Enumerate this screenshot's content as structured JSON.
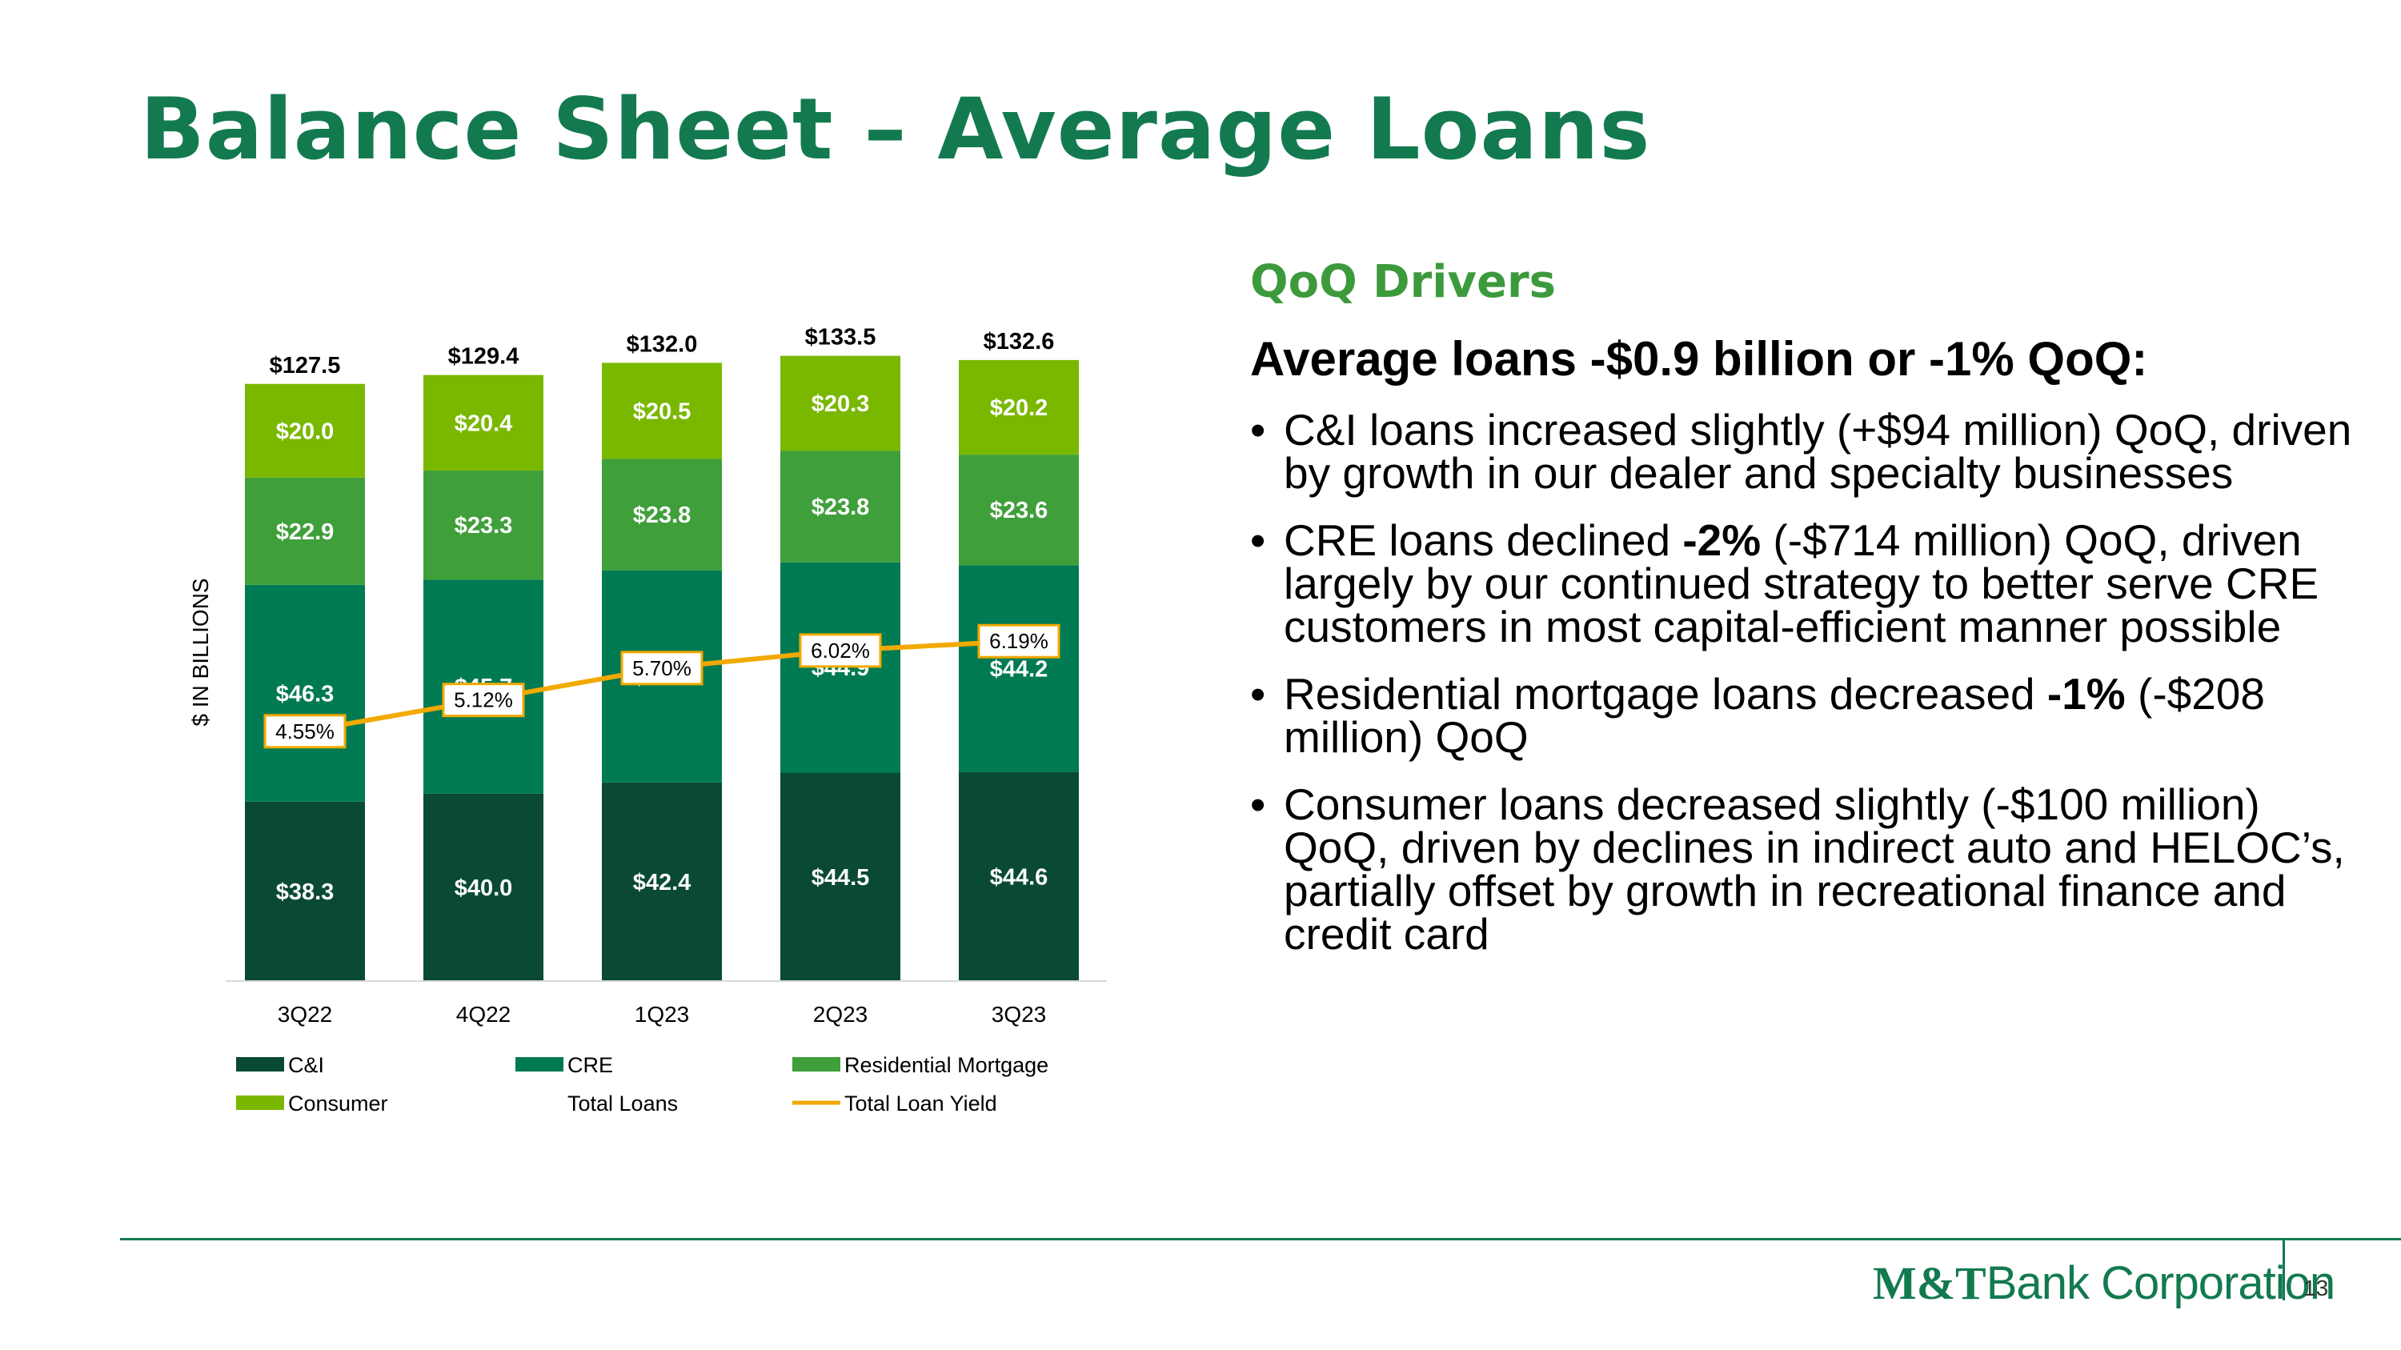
{
  "slide": {
    "title": "Balance Sheet – Average Loans",
    "page_number": "13",
    "logo": {
      "mt": "M&T",
      "rest": "Bank Corporation"
    }
  },
  "drivers": {
    "heading": "QoQ Drivers",
    "summary": "Average loans -$0.9 billion or -1% QoQ:",
    "bullets": [
      {
        "pre": "C&I loans increased slightly (+$94 million) QoQ, driven by growth in our dealer and specialty businesses",
        "bold": "",
        "post": ""
      },
      {
        "pre": "CRE loans declined ",
        "bold": "-2%",
        "post": " (-$714 million) QoQ, driven largely by our continued strategy to better serve CRE customers in most capital-efficient manner possible"
      },
      {
        "pre": "Residential mortgage loans decreased ",
        "bold": "-1%",
        "post": " (-$208 million) QoQ"
      },
      {
        "pre": "Consumer loans decreased slightly (-$100 million) QoQ, driven by declines in indirect auto and HELOC’s, partially offset by growth in recreational finance and credit card",
        "bold": "",
        "post": ""
      }
    ]
  },
  "chart_data": {
    "type": "bar",
    "stacked": true,
    "ylabel": "$ IN BILLIONS",
    "categories": [
      "3Q22",
      "4Q22",
      "1Q23",
      "2Q23",
      "3Q23"
    ],
    "series": [
      {
        "name": "C&I",
        "color": "#0a4a33",
        "values": [
          38.3,
          40.0,
          42.4,
          44.5,
          44.6
        ],
        "labels": [
          "$38.3",
          "$40.0",
          "$42.4",
          "$44.5",
          "$44.6"
        ]
      },
      {
        "name": "CRE",
        "color": "#007a52",
        "values": [
          46.3,
          45.7,
          45.3,
          44.9,
          44.2
        ],
        "labels": [
          "$46.3",
          "$45.7",
          "$45.3",
          "$44.9",
          "$44.2"
        ]
      },
      {
        "name": "Residential Mortgage",
        "color": "#3f9f3a",
        "values": [
          22.9,
          23.3,
          23.8,
          23.8,
          23.6
        ],
        "labels": [
          "$22.9",
          "$23.3",
          "$23.8",
          "$23.8",
          "$23.6"
        ]
      },
      {
        "name": "Consumer",
        "color": "#7ab800",
        "values": [
          20.0,
          20.4,
          20.5,
          20.3,
          20.2
        ],
        "labels": [
          "$20.0",
          "$20.4",
          "$20.5",
          "$20.3",
          "$20.2"
        ]
      }
    ],
    "totals": {
      "name": "Total Loans",
      "values": [
        127.5,
        129.4,
        132.0,
        133.5,
        132.6
      ],
      "labels": [
        "$127.5",
        "$129.4",
        "$132.0",
        "$133.5",
        "$132.6"
      ]
    },
    "line": {
      "name": "Total Loan Yield",
      "color": "#f2a900",
      "values": [
        4.55,
        5.12,
        5.7,
        6.02,
        6.19
      ],
      "labels": [
        "4.55%",
        "5.12%",
        "5.70%",
        "6.02%",
        "6.19%"
      ],
      "yrange": [
        0,
        11.6
      ]
    },
    "ylim": [
      0,
      136
    ],
    "grid": false,
    "legend_position": "bottom"
  }
}
